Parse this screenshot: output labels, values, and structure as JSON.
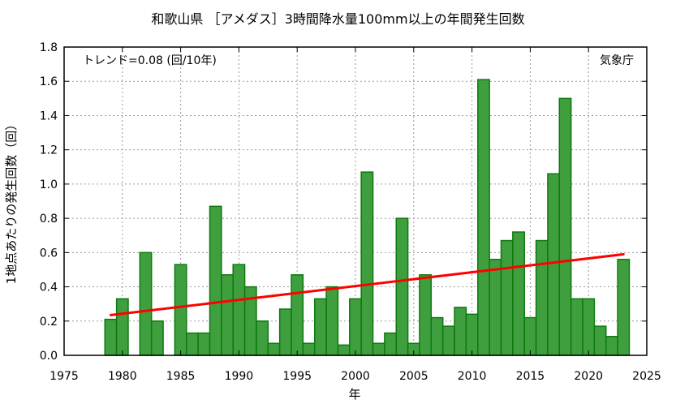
{
  "chart_data": {
    "type": "bar",
    "title": "和歌山県 ［アメダス］3時間降水量100mm以上の年間発生回数",
    "xlabel": "年",
    "ylabel": "1地点あたりの発生回数（回）",
    "xlim": [
      1975,
      2025
    ],
    "ylim": [
      0,
      1.8
    ],
    "xticks": [
      "1975",
      "1980",
      "1985",
      "1990",
      "1995",
      "2000",
      "2005",
      "2010",
      "2015",
      "2020",
      "2025"
    ],
    "yticks": [
      "0.0",
      "0.2",
      "0.4",
      "0.6",
      "0.8",
      "1.0",
      "1.2",
      "1.4",
      "1.6",
      "1.8"
    ],
    "grid": true,
    "categories": [
      1979,
      1980,
      1981,
      1982,
      1983,
      1984,
      1985,
      1986,
      1987,
      1988,
      1989,
      1990,
      1991,
      1992,
      1993,
      1994,
      1995,
      1996,
      1997,
      1998,
      1999,
      2000,
      2001,
      2002,
      2003,
      2004,
      2005,
      2006,
      2007,
      2008,
      2009,
      2010,
      2011,
      2012,
      2013,
      2014,
      2015,
      2016,
      2017,
      2018,
      2019,
      2020,
      2021,
      2022,
      2023
    ],
    "values": [
      0.21,
      0.33,
      0,
      0.6,
      0.2,
      0,
      0.53,
      0.13,
      0.13,
      0.87,
      0.47,
      0.53,
      0.4,
      0.2,
      0.07,
      0.27,
      0.47,
      0.07,
      0.33,
      0.4,
      0.06,
      0.33,
      1.07,
      0.07,
      0.13,
      0.8,
      0.07,
      0.47,
      0.22,
      0.17,
      0.28,
      0.24,
      1.61,
      0.56,
      0.67,
      0.72,
      0.22,
      0.67,
      1.06,
      1.5,
      0.33,
      0.33,
      0.17,
      0.11,
      0.56
    ],
    "trend": {
      "label": "トレンド=0.08 (回/10年)",
      "x": [
        1979,
        2023
      ],
      "y": [
        0.235,
        0.59
      ],
      "color": "#ff0000"
    },
    "bar_color": "#3f9f3f",
    "bar_edge_color": "#0c7a0c",
    "source_label": "気象庁"
  }
}
